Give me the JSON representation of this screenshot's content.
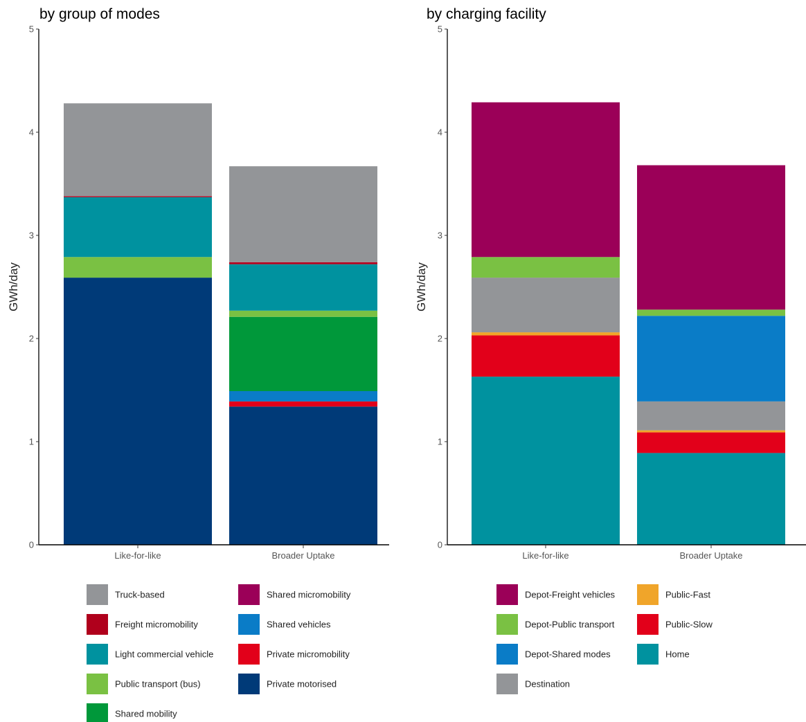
{
  "chart_data": [
    {
      "type": "bar",
      "stacked": true,
      "title": "by group of modes",
      "xlabel": "",
      "ylabel": "GWh/day",
      "ylim": [
        0,
        5
      ],
      "yticks": [
        "0",
        "1",
        "2",
        "3",
        "4",
        "5"
      ],
      "grid": false,
      "legend_position": "bottom",
      "categories": [
        "Like-for-like",
        "Broader Uptake"
      ],
      "series": [
        {
          "name": "Private motorised",
          "color": "#003a78",
          "values": [
            2.59,
            1.34
          ]
        },
        {
          "name": "Private micromobility",
          "color": "#e2001a",
          "values": [
            0.0,
            0.05
          ]
        },
        {
          "name": "Shared micromobility",
          "color": "#9b0058",
          "values": [
            0.0,
            0.0
          ]
        },
        {
          "name": "Shared vehicles",
          "color": "#0a7cc7",
          "values": [
            0.0,
            0.1
          ]
        },
        {
          "name": "Shared mobility",
          "color": "#00983a",
          "values": [
            0.0,
            0.72
          ]
        },
        {
          "name": "Public transport (bus)",
          "color": "#7ac143",
          "values": [
            0.2,
            0.06
          ]
        },
        {
          "name": "Light commercial vehicle",
          "color": "#00929f",
          "values": [
            0.58,
            0.45
          ]
        },
        {
          "name": "Freight micromobility",
          "color": "#b0001c",
          "values": [
            0.01,
            0.02
          ]
        },
        {
          "name": "Truck-based",
          "color": "#939598",
          "values": [
            0.9,
            0.93
          ]
        }
      ],
      "legend_order": [
        "Truck-based",
        "Freight micromobility",
        "Light commercial vehicle",
        "Public transport (bus)",
        "Shared mobility",
        "Shared micromobility",
        "Shared vehicles",
        "Private micromobility",
        "Private motorised"
      ]
    },
    {
      "type": "bar",
      "stacked": true,
      "title": "by charging facility",
      "xlabel": "",
      "ylabel": "GWh/day",
      "ylim": [
        0,
        5
      ],
      "yticks": [
        "0",
        "1",
        "2",
        "3",
        "4",
        "5"
      ],
      "grid": false,
      "legend_position": "bottom",
      "categories": [
        "Like-for-like",
        "Broader Uptake"
      ],
      "series": [
        {
          "name": "Home",
          "color": "#00929f",
          "values": [
            1.63,
            0.89
          ]
        },
        {
          "name": "Public-Slow",
          "color": "#e2001a",
          "values": [
            0.4,
            0.2
          ]
        },
        {
          "name": "Public-Fast",
          "color": "#f0a52a",
          "values": [
            0.03,
            0.02
          ]
        },
        {
          "name": "Destination",
          "color": "#939598",
          "values": [
            0.53,
            0.28
          ]
        },
        {
          "name": "Depot-Shared modes",
          "color": "#0a7cc7",
          "values": [
            0.0,
            0.83
          ]
        },
        {
          "name": "Depot-Public transport",
          "color": "#7ac143",
          "values": [
            0.2,
            0.06
          ]
        },
        {
          "name": "Depot-Freight vehicles",
          "color": "#9b0058",
          "values": [
            1.5,
            1.4
          ]
        }
      ],
      "legend_order": [
        "Depot-Freight vehicles",
        "Depot-Public transport",
        "Depot-Shared modes",
        "Destination",
        "Public-Fast",
        "Public-Slow",
        "Home"
      ]
    }
  ]
}
